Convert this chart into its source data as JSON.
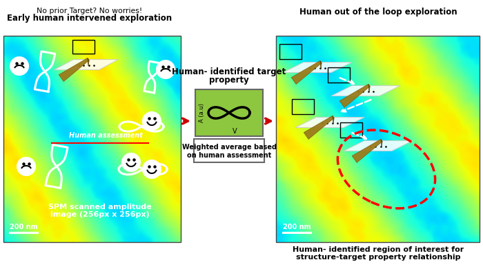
{
  "title_left_line1": "No prior Target? No worries!",
  "title_left_line2": "Early human intervened exploration",
  "title_right": "Human out of the loop exploration",
  "label_middle_line1": "Human- identified target",
  "label_middle_line2": "property",
  "label_box_bottom_line1": "Weighted average based",
  "label_box_bottom_line2": "on human assessment",
  "label_bottom_right_line1": "Human- identified region of interest for",
  "label_bottom_right_line2": "structure-target property relationship",
  "scale_bar_text": "200 nm",
  "spm_label_line1": "SPM scanned amplitude",
  "spm_label_line2": "image (256px x 256px)",
  "human_assessment_label": "Human assessment",
  "axis_label_y": "A (a.u)",
  "axis_label_x": "V",
  "bg_color": "#ffffff",
  "green_box_color": "#8dc63f",
  "arrow_color": "#cc0000",
  "spm_cmap": "jet"
}
